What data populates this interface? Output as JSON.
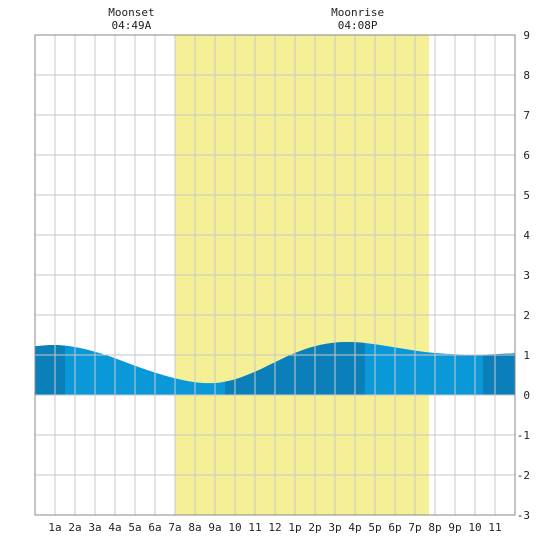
{
  "chart_data": {
    "type": "area",
    "x_tick_labels": [
      "1a",
      "2a",
      "3a",
      "4a",
      "5a",
      "6a",
      "7a",
      "8a",
      "9a",
      "10",
      "11",
      "12",
      "1p",
      "2p",
      "3p",
      "4p",
      "5p",
      "6p",
      "7p",
      "8p",
      "9p",
      "10",
      "11"
    ],
    "y_ticks": [
      -3,
      -2,
      -1,
      0,
      1,
      2,
      3,
      4,
      5,
      6,
      7,
      8,
      9
    ],
    "ylim": [
      -3,
      9
    ],
    "xlim_hours": [
      0,
      24
    ],
    "grid": true,
    "daylight_hours": [
      7.0,
      19.7
    ],
    "moon_events": [
      {
        "label": "Moonset",
        "time": "04:49A",
        "hour": 4.82
      },
      {
        "label": "Moonrise",
        "time": "04:08P",
        "hour": 16.13
      }
    ],
    "tide_series": {
      "hours": [
        0,
        1,
        2,
        3,
        4,
        5,
        6,
        7,
        8,
        9,
        10,
        11,
        12,
        13,
        14,
        15,
        16,
        17,
        18,
        19,
        20,
        21,
        22,
        23,
        24
      ],
      "values": [
        1.22,
        1.25,
        1.2,
        1.08,
        0.92,
        0.73,
        0.56,
        0.42,
        0.32,
        0.3,
        0.39,
        0.58,
        0.82,
        1.05,
        1.22,
        1.31,
        1.32,
        1.27,
        1.19,
        1.11,
        1.05,
        1.02,
        1.01,
        1.02,
        1.04
      ]
    },
    "dark_bands_hours": [
      [
        0,
        1.5
      ],
      [
        9.5,
        16.5
      ],
      [
        22.4,
        24
      ]
    ],
    "colors": {
      "daylight": "#f5ef96",
      "tide": "#0b98d8",
      "tide_dark": "#0a7fb9",
      "grid": "#c8c8c8",
      "border": "#888888"
    }
  }
}
